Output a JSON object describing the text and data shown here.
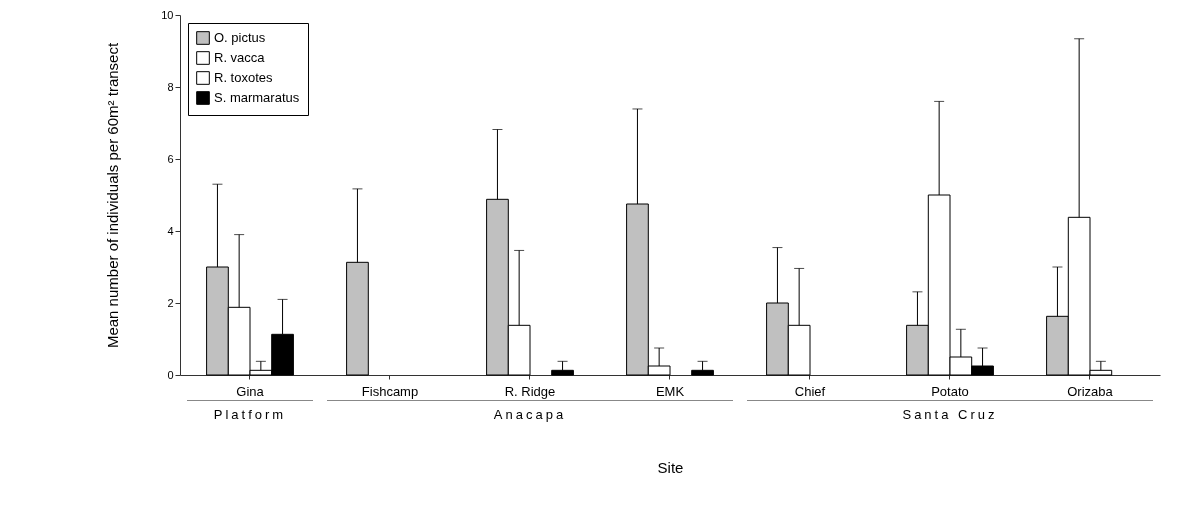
{
  "chart_data": {
    "type": "bar",
    "xlabel": "Site",
    "ylabel": "Mean number of individuals per 60m² transect",
    "categories": [
      "Gina",
      "Fishcamp",
      "R. Ridge",
      "EMK",
      "Chief",
      "Potato",
      "Orizaba"
    ],
    "series": [
      {
        "name": "O. pictus",
        "color": "#c0c0c0",
        "values": [
          3.0,
          3.13,
          4.88,
          4.75,
          2.0,
          1.38,
          1.63
        ],
        "errors": [
          [
            3.0,
            5.3
          ],
          [
            3.13,
            5.17
          ],
          [
            4.88,
            6.82
          ],
          [
            4.75,
            7.39
          ],
          [
            2.0,
            3.54
          ],
          [
            1.38,
            2.31
          ],
          [
            1.63,
            3.0
          ]
        ]
      },
      {
        "name": "R. vacca",
        "color": "#ffffff",
        "values": [
          1.88,
          null,
          1.38,
          0.25,
          1.38,
          5.0,
          4.38
        ],
        "errors": [
          [
            1.88,
            3.9
          ],
          null,
          [
            1.38,
            3.46
          ],
          [
            0.25,
            0.75
          ],
          [
            1.38,
            2.96
          ],
          [
            5.0,
            7.6
          ],
          [
            4.38,
            9.34
          ]
        ]
      },
      {
        "name": "R. toxotes",
        "color": "#ffffff",
        "values": [
          0.13,
          null,
          null,
          null,
          null,
          0.5,
          0.13
        ],
        "errors": [
          [
            0.13,
            0.38
          ],
          null,
          null,
          null,
          null,
          [
            0.5,
            1.27
          ],
          [
            0.13,
            0.38
          ]
        ]
      },
      {
        "name": "S. marmaratus",
        "color": "#000000",
        "values": [
          1.13,
          null,
          0.13,
          0.13,
          null,
          0.25,
          null
        ],
        "errors": [
          [
            1.13,
            2.1
          ],
          null,
          [
            0.13,
            0.38
          ],
          [
            0.13,
            0.38
          ],
          null,
          [
            0.25,
            0.75
          ],
          null
        ]
      }
    ],
    "ylim": [
      0,
      10
    ],
    "yticks": [
      0,
      2,
      4,
      6,
      8,
      10
    ],
    "legend": "top left",
    "annotations": [
      "Platform",
      "Anacapa",
      "Santa Cruz"
    ]
  }
}
